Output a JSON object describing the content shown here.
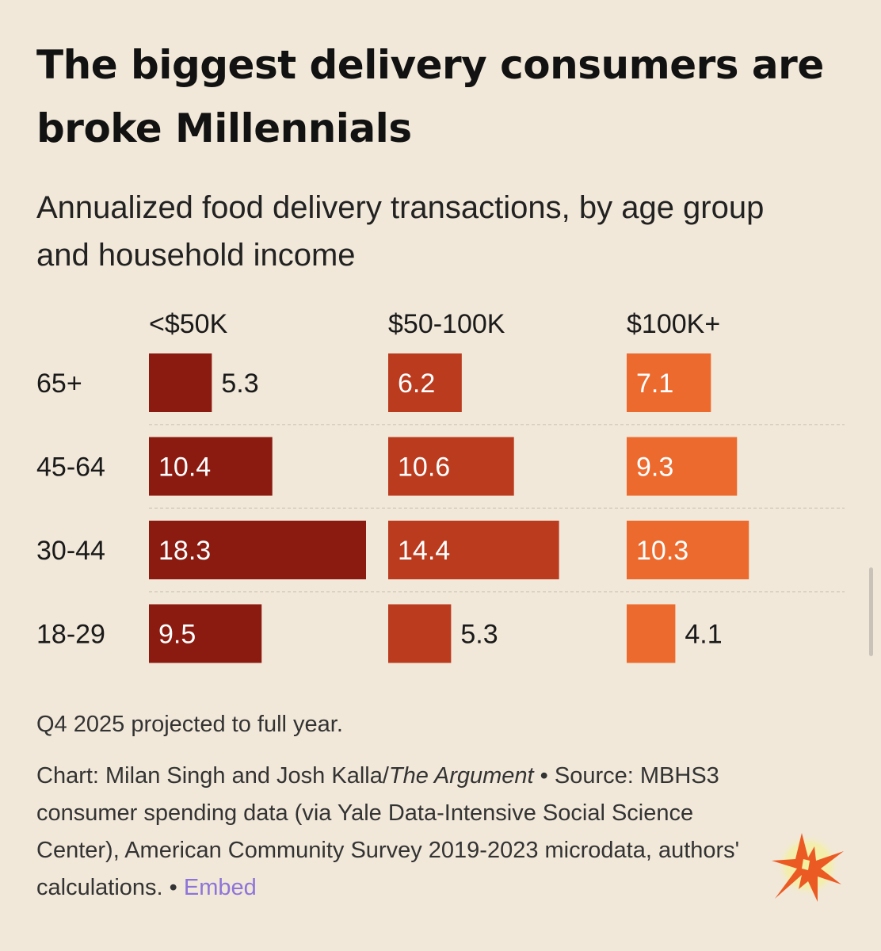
{
  "title": "The biggest delivery consumers are broke Millennials",
  "subtitle": "Annualized food delivery transactions, by age group and household income",
  "chart_data": {
    "type": "bar",
    "orientation": "horizontal",
    "layout": "small-multiples",
    "title": "The biggest delivery consumers are broke Millennials",
    "subtitle": "Annualized food delivery transactions, by age group and household income",
    "categories": [
      "65+",
      "45-64",
      "30-44",
      "18-29"
    ],
    "series": [
      {
        "name": "<$50K",
        "color": "#8b1a10",
        "values": [
          5.3,
          10.4,
          18.3,
          9.5
        ]
      },
      {
        "name": "$50-100K",
        "color": "#bb3b1e",
        "values": [
          6.2,
          10.6,
          14.4,
          5.3
        ]
      },
      {
        "name": "$100K+",
        "color": "#ed6a2e",
        "values": [
          7.1,
          9.3,
          10.3,
          4.1
        ]
      }
    ],
    "xlim": [
      0,
      18.3
    ],
    "grid": false,
    "xlabel": "",
    "ylabel": ""
  },
  "footer": {
    "note": "Q4 2025 projected to full year.",
    "chart_prefix": "Chart: Milan Singh and Josh Kalla/",
    "publication": "The Argument",
    "source_text": " • Source: MBHS3 consumer spending data (via Yale Data-Intensive Social Science Center), American Community Survey 2019-2023 microdata, authors' calculations.  • ",
    "embed_label": "Embed"
  },
  "logo": {
    "icon": "starburst-icon"
  }
}
